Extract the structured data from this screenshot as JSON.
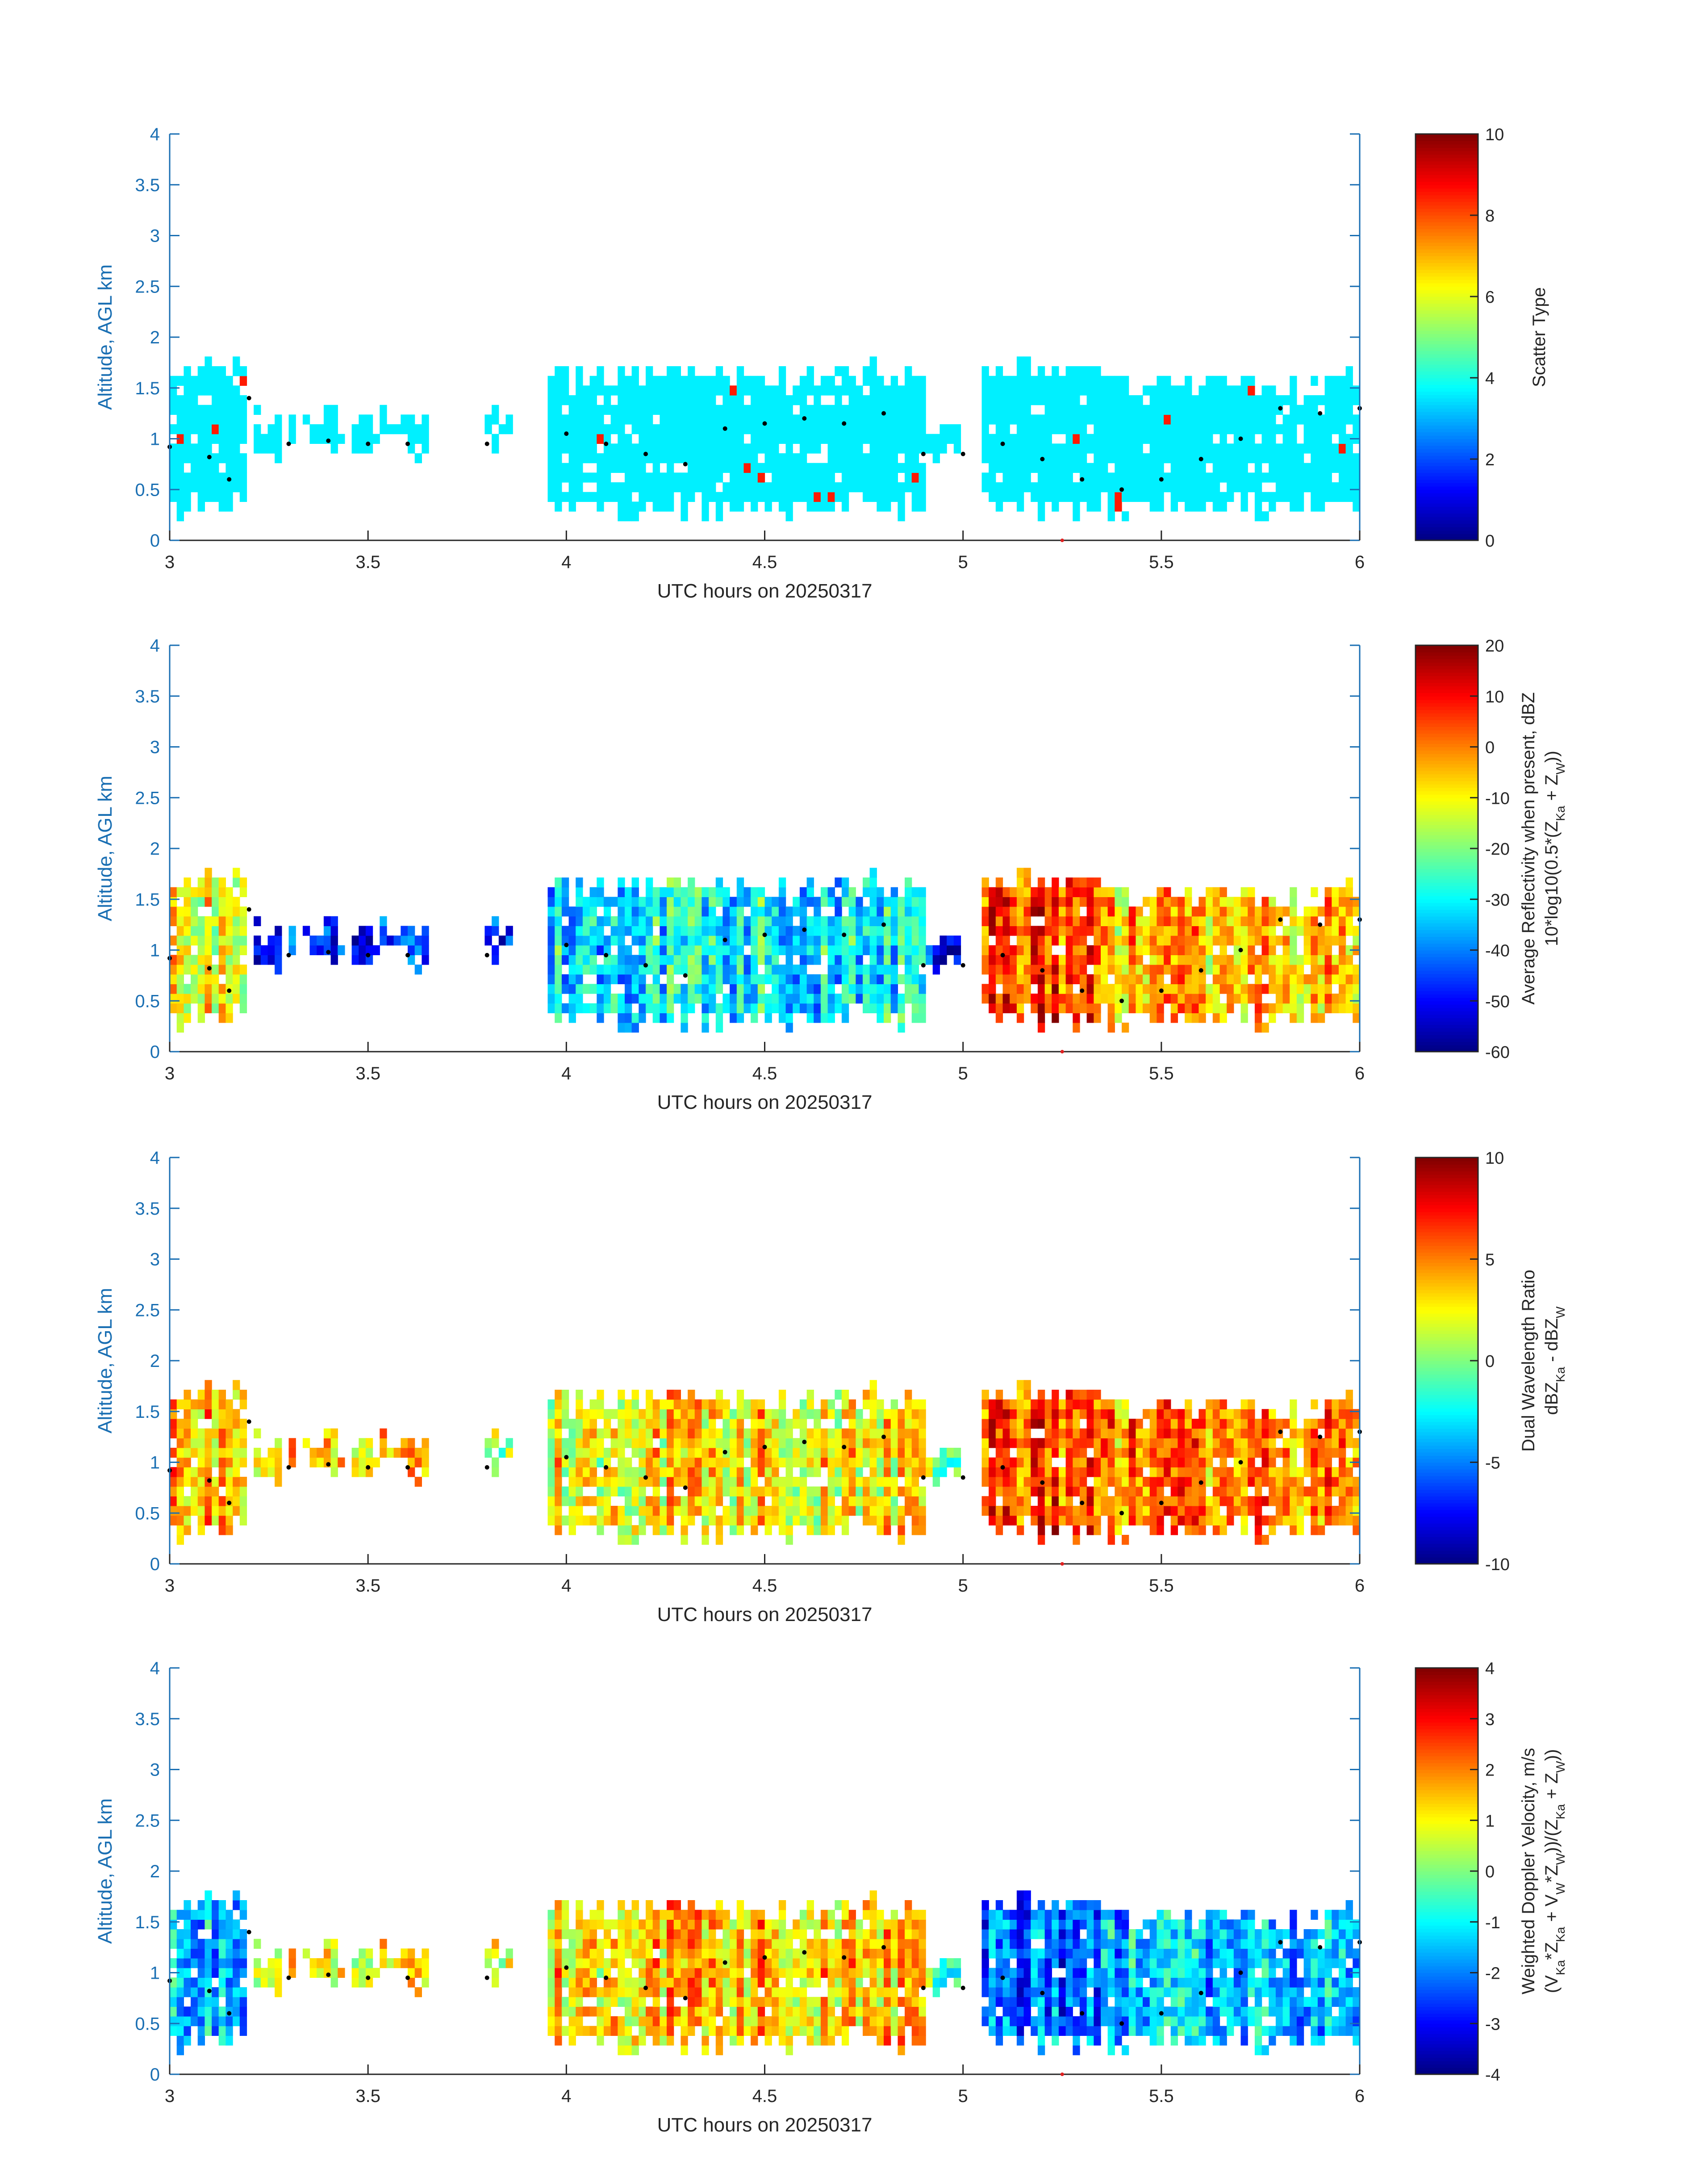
{
  "figure": {
    "panels": [
      {
        "ylabel": "Altitude, AGL km",
        "xlabel": "UTC hours on 20250317",
        "colorbar": {
          "label_lines": [
            "Scatter Type"
          ],
          "ticks": [
            "0",
            "2",
            "4",
            "6",
            "8",
            "10"
          ],
          "range": [
            0,
            10
          ]
        }
      },
      {
        "ylabel": "Altitude, AGL km",
        "xlabel": "UTC hours on 20250317",
        "colorbar": {
          "label_lines": [
            "Average Reflectivity when present, dBZ",
            "10*log10(0.5*(Z",
            "Ka",
            " + Z",
            "W",
            "))"
          ],
          "ticks": [
            "-60",
            "-50",
            "-40",
            "-30",
            "-20",
            "-10",
            "0",
            "10",
            "20"
          ],
          "range": [
            -60,
            20
          ]
        }
      },
      {
        "ylabel": "Altitude, AGL km",
        "xlabel": "UTC hours on 20250317",
        "colorbar": {
          "label_lines": [
            "Dual Wavelength Ratio",
            "dBZ",
            "Ka",
            " - dBZ",
            "W"
          ],
          "ticks": [
            "-10",
            "-5",
            "0",
            "5",
            "10"
          ],
          "range": [
            -10,
            10
          ]
        }
      },
      {
        "ylabel": "Altitude, AGL km",
        "xlabel": "UTC hours on 20250317",
        "colorbar": {
          "label_lines": [
            "Weighted Doppler Velocity, m/s",
            "(V",
            "Ka",
            "*Z",
            "Ka",
            " + V",
            "W",
            "*Z",
            "W",
            "))/(Z",
            "Ka",
            " + Z",
            "W",
            "))"
          ],
          "ticks": [
            "-4",
            "-3",
            "-2",
            "-1",
            "0",
            "1",
            "2",
            "3",
            "4"
          ],
          "range": [
            -4,
            4
          ]
        }
      }
    ]
  },
  "chart_data": {
    "type": "heatmap",
    "colormap": "jet",
    "x_label": "UTC hours on 20250317",
    "y_label": "Altitude, AGL km",
    "xlim": [
      3,
      6
    ],
    "ylim": [
      0,
      4
    ],
    "x_ticks": [
      "3",
      "3.5",
      "4",
      "4.5",
      "5",
      "5.5",
      "6"
    ],
    "y_ticks": [
      "0",
      "0.5",
      "1",
      "1.5",
      "2",
      "2.5",
      "3",
      "3.5",
      "4"
    ],
    "cloud_segments": [
      {
        "x": [
          3.0,
          3.2
        ],
        "ymin": 0.2,
        "ymax": 1.7
      },
      {
        "x": [
          3.22,
          3.65
        ],
        "ymin": 0.8,
        "ymax": 1.2
      },
      {
        "x": [
          3.77,
          3.86
        ],
        "ymin": 0.85,
        "ymax": 1.2
      },
      {
        "x": [
          3.95,
          4.9
        ],
        "ymin": 0.2,
        "ymax": 1.65
      },
      {
        "x": [
          4.9,
          5.0
        ],
        "ymin": 0.7,
        "ymax": 1.1
      },
      {
        "x": [
          5.05,
          5.35
        ],
        "ymin": 0.2,
        "ymax": 1.7
      },
      {
        "x": [
          5.35,
          6.0
        ],
        "ymin": 0.2,
        "ymax": 1.55
      }
    ],
    "black_dot_trace": {
      "x": [
        3.0,
        3.1,
        3.15,
        3.2,
        3.3,
        3.4,
        3.5,
        3.6,
        3.8,
        4.0,
        4.1,
        4.2,
        4.3,
        4.4,
        4.5,
        4.6,
        4.7,
        4.8,
        4.9,
        5.0,
        5.1,
        5.2,
        5.3,
        5.4,
        5.5,
        5.6,
        5.7,
        5.8,
        5.9,
        6.0
      ],
      "y": [
        0.92,
        0.82,
        0.6,
        1.4,
        0.95,
        0.98,
        0.95,
        0.95,
        0.95,
        1.05,
        0.95,
        0.85,
        0.75,
        1.1,
        1.15,
        1.2,
        1.15,
        1.25,
        0.85,
        0.85,
        0.95,
        0.8,
        0.6,
        0.5,
        0.6,
        0.8,
        1.0,
        1.3,
        1.25,
        1.3
      ]
    },
    "red_tick_x": 5.25,
    "panels": [
      {
        "field": "Scatter Type",
        "clim": [
          0,
          10
        ],
        "dominant_value": 3.6,
        "secondary_value": 8.5
      },
      {
        "field": "Average Reflectivity when present, dBZ",
        "clim": [
          -60,
          20
        ],
        "segment_values": [
          -10,
          -45,
          -50,
          -30,
          -45,
          5,
          -5
        ]
      },
      {
        "field": "Dual Wavelength Ratio",
        "clim": [
          -10,
          10
        ],
        "segment_values": [
          4,
          4,
          0,
          3,
          1,
          6,
          5
        ]
      },
      {
        "field": "Weighted Doppler Velocity, m/s",
        "clim": [
          -4,
          4
        ],
        "segment_values": [
          -1.5,
          1.2,
          0.5,
          1.5,
          0,
          -2.2,
          -1.5
        ]
      }
    ]
  }
}
